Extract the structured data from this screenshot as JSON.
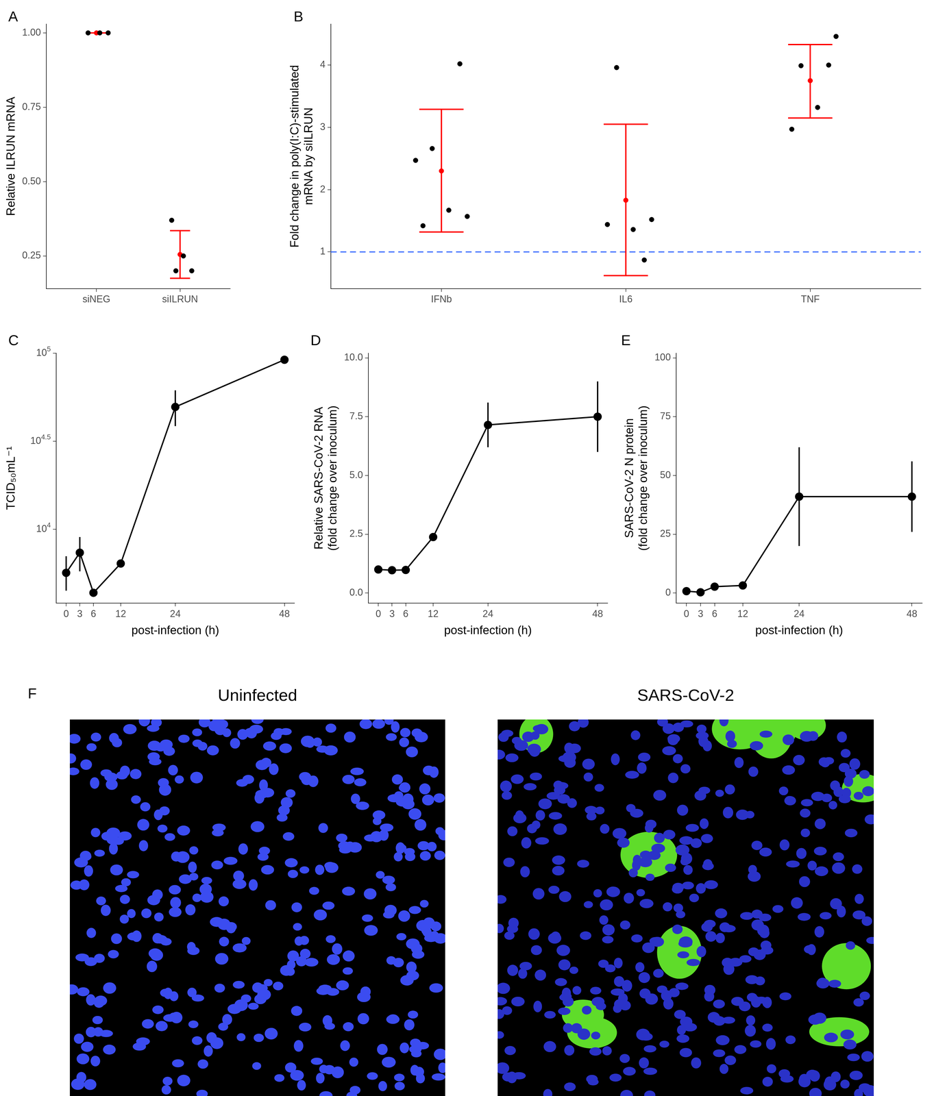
{
  "chart_data": [
    {
      "panel": "A",
      "type": "scatter",
      "categories": [
        "siNEG",
        "siILRUN"
      ],
      "values": [
        [
          1.0,
          1.0,
          1.0
        ],
        [
          0.37,
          0.25,
          0.2,
          0.2
        ]
      ],
      "color": "#000000",
      "summary": {
        "color": "#ff0000",
        "values": [
          1.0,
          0.255
        ],
        "error": [
          [
            1.0,
            1.0
          ],
          [
            0.175,
            0.335
          ]
        ]
      },
      "y_label": "Relative ILRUN mRNA",
      "ylim": [
        0.14,
        1.03
      ],
      "yticks": [
        0.25,
        {
          "value": 0.5,
          "label": "0.50"
        },
        0.75,
        {
          "value": 1,
          "label": "1.00"
        }
      ],
      "grid": false
    },
    {
      "panel": "B",
      "type": "scatter",
      "categories": [
        "IFNb",
        "IL6",
        "TNF"
      ],
      "values": [
        [
          1.42,
          1.67,
          1.57,
          2.66,
          4.02,
          2.47
        ],
        [
          1.44,
          1.36,
          1.52,
          3.96,
          0.87
        ],
        [
          2.97,
          3.32,
          4.46,
          3.99,
          4.0
        ]
      ],
      "color": "#000000",
      "summary": {
        "color": "#ff0000",
        "values": [
          2.3,
          1.83,
          3.75
        ],
        "error": [
          [
            1.32,
            3.29
          ],
          [
            0.62,
            3.05
          ],
          [
            3.15,
            4.33
          ]
        ]
      },
      "reference_line": {
        "value": 1,
        "color": "#3366ff",
        "line_style": "dashed"
      },
      "y_label": "Fold change in poly(I:C)-stimulated\nmRNA by siILRUN",
      "ylim": [
        0.41,
        4.66
      ],
      "yticks": [
        1,
        2,
        3,
        4
      ],
      "grid": false
    },
    {
      "panel": "C",
      "type": "line",
      "x": [
        0,
        3,
        6,
        12,
        24,
        48
      ],
      "values": [
        5650,
        7350,
        4350,
        6380,
        49500,
        91800
      ],
      "error": [
        [
          4470,
          7020
        ],
        [
          5760,
          9020
        ],
        [
          4300,
          4400
        ],
        [
          6300,
          6460
        ],
        [
          38500,
          61500
        ],
        [
          90500,
          93100
        ]
      ],
      "color": "#000000",
      "marker": "circle",
      "log": "y",
      "x_label": "post-infection (h)",
      "y_label": "TCID₅₀mL⁻¹",
      "xlim": [
        -2.2,
        50.2
      ],
      "xticks": [
        0,
        3,
        6,
        12,
        24,
        48
      ],
      "ylim": [
        3800,
        100000
      ],
      "yticks": [
        {
          "value": 10000,
          "label": "10^4"
        },
        {
          "value": 31622.8,
          "label": "10^4.5"
        },
        {
          "value": 100000,
          "label": "10^5"
        }
      ],
      "grid": false
    },
    {
      "panel": "D",
      "type": "line",
      "x": [
        0,
        3,
        6,
        12,
        24,
        48
      ],
      "values": [
        1.0,
        0.97,
        0.98,
        2.38,
        7.15,
        7.5
      ],
      "error": [
        [
          0.95,
          1.05
        ],
        [
          0.93,
          1.01
        ],
        [
          0.94,
          1.02
        ],
        [
          2.25,
          2.5
        ],
        [
          6.2,
          8.1
        ],
        [
          6.0,
          9.0
        ]
      ],
      "color": "#000000",
      "marker": "circle",
      "x_label": "post-infection (h)",
      "y_label": "Relative SARS-CoV-2 RNA\n(fold change over inoculum)",
      "xlim": [
        -2.2,
        50.2
      ],
      "xticks": [
        0,
        3,
        6,
        12,
        24,
        48
      ],
      "ylim": [
        -0.43,
        10.2
      ],
      "yticks": [
        {
          "value": 0,
          "label": "0.0"
        },
        2.5,
        {
          "value": 5,
          "label": "5.0"
        },
        7.5,
        {
          "value": 10,
          "label": "10.0"
        }
      ],
      "grid": false
    },
    {
      "panel": "E",
      "type": "line",
      "x": [
        0,
        3,
        6,
        12,
        24,
        48
      ],
      "values": [
        0.8,
        0.3,
        2.7,
        3.2,
        41,
        41
      ],
      "error": [
        [
          0.3,
          1.3
        ],
        [
          0.1,
          0.5
        ],
        [
          1.5,
          4.0
        ],
        [
          2.5,
          4.0
        ],
        [
          20,
          62
        ],
        [
          26,
          56
        ]
      ],
      "color": "#000000",
      "marker": "circle",
      "x_label": "post-infection (h)",
      "y_label": "SARS-CoV-2 N protein\n(fold change over inoculum)",
      "xlim": [
        -2.2,
        50.2
      ],
      "xticks": [
        0,
        3,
        6,
        12,
        24,
        48
      ],
      "ylim": [
        -4.3,
        102
      ],
      "yticks": [
        0,
        25,
        50,
        75,
        100
      ],
      "grid": false
    }
  ],
  "images": {
    "panel": "F",
    "titles": [
      "Uninfected",
      "SARS-CoV-2"
    ]
  }
}
